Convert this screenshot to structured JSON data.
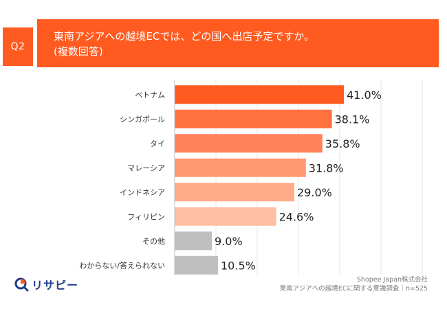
{
  "header": {
    "question_no": "Q2",
    "question_line1": "東南アジアへの越境ECでは、どの国へ出店予定ですか。",
    "question_line2": "(複数回答)"
  },
  "footer": {
    "source_line1": "Shopee Japan株式会社",
    "source_line2": "東南アジアへの越境ECに関する意識調査｜n=525",
    "logo_text": "リサピー",
    "logo_icon": "magnifier-icon"
  },
  "chart_data": {
    "type": "bar",
    "orientation": "horizontal",
    "categories": [
      "ベトナム",
      "シンガポール",
      "タイ",
      "マレーシア",
      "インドネシア",
      "フィリピン",
      "その他",
      "わからない/答えられない"
    ],
    "values": [
      41.0,
      38.1,
      35.8,
      31.8,
      29.0,
      24.6,
      9.0,
      10.5
    ],
    "value_labels": [
      "41.0%",
      "38.1%",
      "35.8%",
      "31.8%",
      "29.0%",
      "24.6%",
      "9.0%",
      "10.5%"
    ],
    "colors": [
      "#ff5a1f",
      "#ff7240",
      "#ff8258",
      "#ff9870",
      "#ffab8a",
      "#ffbfa3",
      "#bfbfbf",
      "#bfbfbf"
    ],
    "xlim": [
      0,
      100
    ],
    "grid": true
  }
}
